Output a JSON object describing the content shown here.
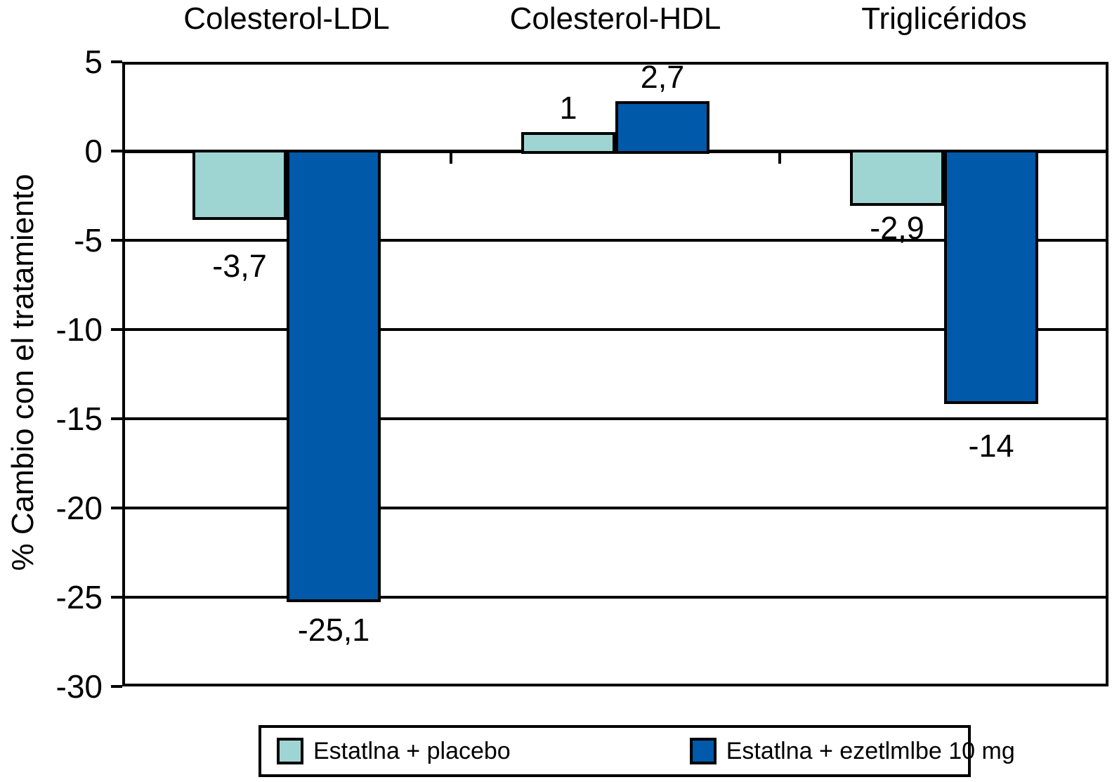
{
  "chart_data": {
    "type": "bar",
    "title": "",
    "ylabel": "% Cambio con el tratamiento",
    "xlabel": "",
    "categories": [
      "Colesterol-LDL",
      "Colesterol-HDL",
      "Triglicéridos"
    ],
    "series": [
      {
        "name": "Estatlna + placebo",
        "color": "#9ed4d2",
        "values": [
          -3.7,
          1,
          -2.9
        ],
        "labels": [
          "-3,7",
          "1",
          "-2,9"
        ]
      },
      {
        "name": "Estatlna + ezetlmlbe 10 mg",
        "color": "#0059a9",
        "values": [
          -25.1,
          2.7,
          -14
        ],
        "labels": [
          "-25,1",
          "2,7",
          "-14"
        ]
      }
    ],
    "ylim": [
      -30,
      5
    ],
    "y_ticks": [
      5,
      0,
      -5,
      -10,
      -15,
      -20,
      -25,
      -30
    ],
    "y_tick_labels": [
      "5",
      "0",
      "-5",
      "-10",
      "-15",
      "-20",
      "-25",
      "-30"
    ],
    "grid": true,
    "legend_position": "bottom",
    "bar_outline_color": "#000000",
    "axis_color": "#000000",
    "background_color": "#ffffff"
  }
}
